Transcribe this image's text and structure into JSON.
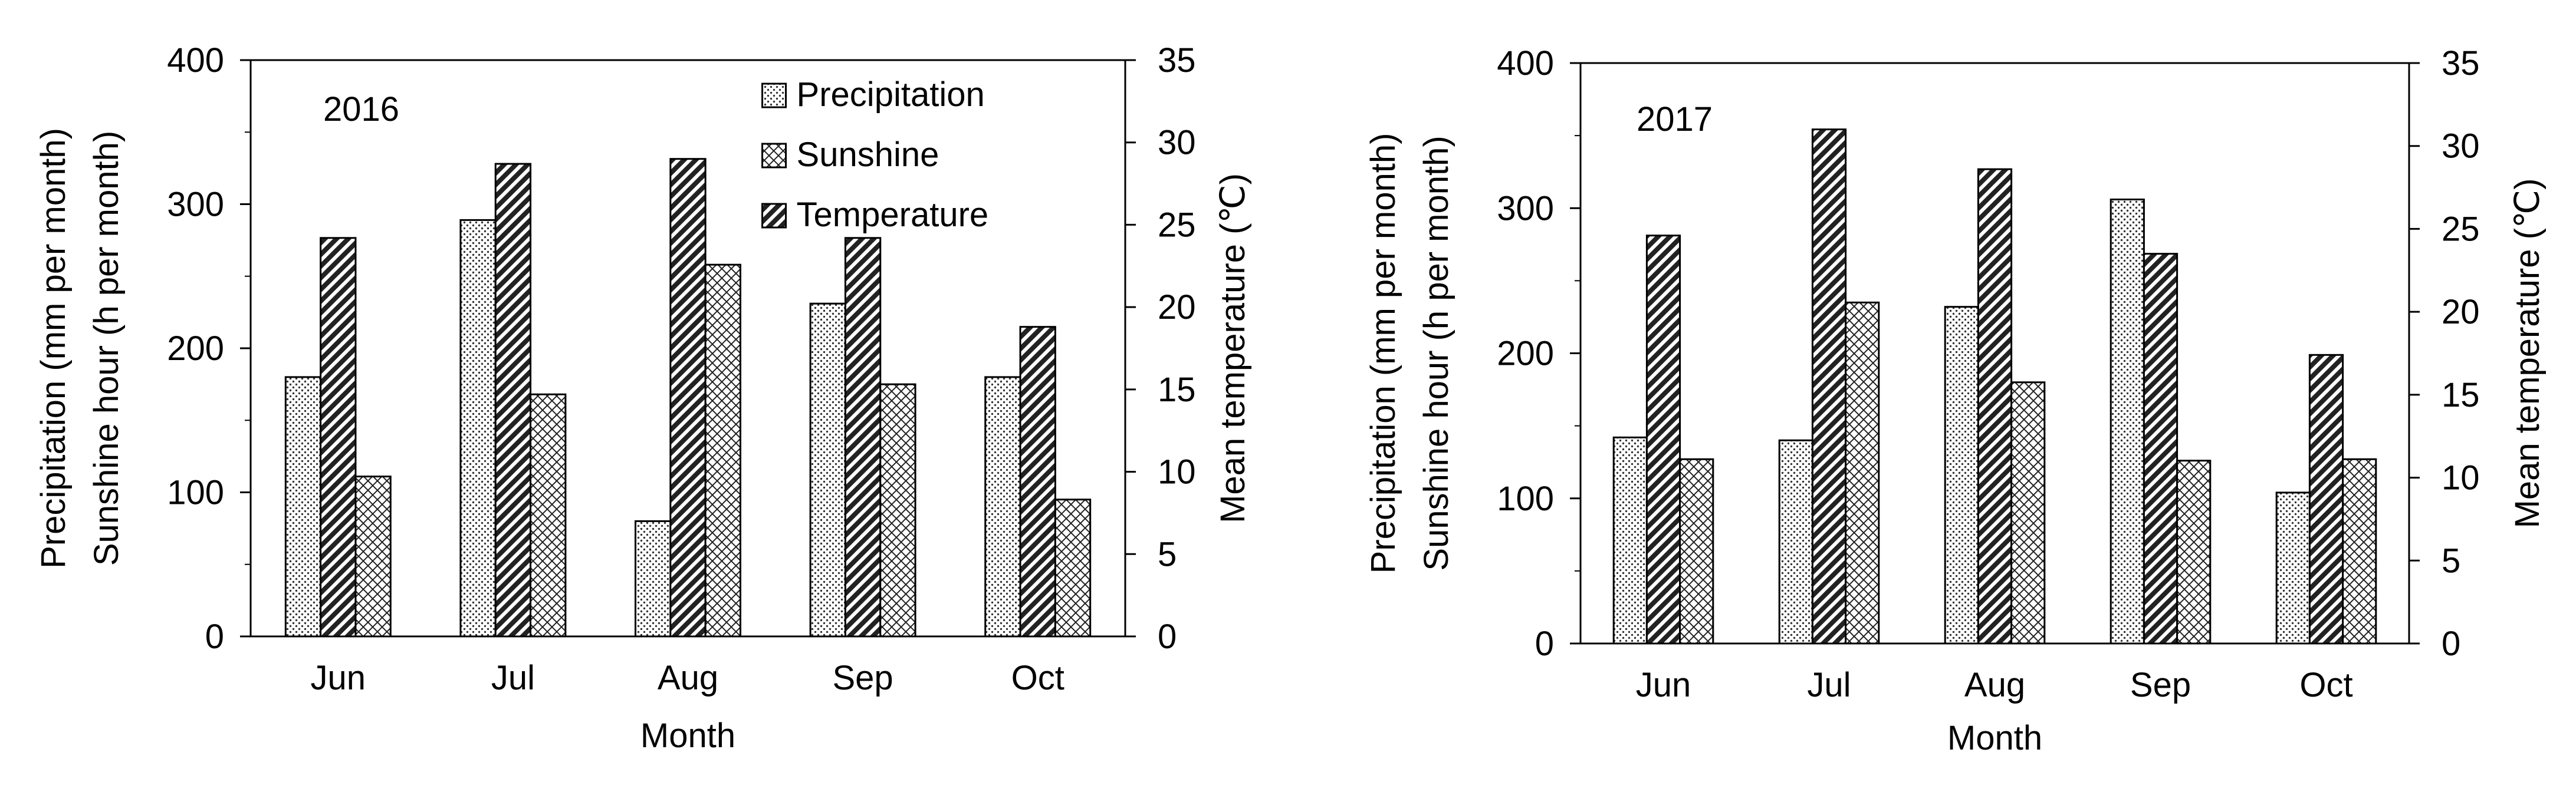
{
  "chart_data": [
    {
      "type": "bar",
      "title": "2016",
      "xlabel": "Month",
      "ylabel_left": [
        "Precipitation (mm per month)",
        "Sunshine hour (h per month)"
      ],
      "ylabel_right": "Mean temperature (℃)",
      "ylim_left": [
        0,
        400
      ],
      "ylim_right": [
        0,
        35
      ],
      "yticks_left": [
        "0",
        "100",
        "200",
        "300",
        "400"
      ],
      "yticks_right": [
        "0",
        "5",
        "10",
        "15",
        "20",
        "25",
        "30",
        "35"
      ],
      "categories": [
        "Jun",
        "Jul",
        "Aug",
        "Sep",
        "Oct"
      ],
      "legend_position": "top-right",
      "legend": [
        "Precipitation",
        "Sunshine",
        "Temperature"
      ],
      "series": [
        {
          "name": "Precipitation",
          "axis": "left",
          "pattern": "dots",
          "values": [
            180,
            289,
            80,
            231,
            180
          ]
        },
        {
          "name": "Temperature",
          "axis": "right",
          "pattern": "diagonal",
          "values": [
            24.2,
            28.7,
            29.0,
            24.2,
            18.8
          ]
        },
        {
          "name": "Sunshine",
          "axis": "left",
          "pattern": "cross",
          "values": [
            111,
            168,
            258,
            175,
            95
          ]
        }
      ]
    },
    {
      "type": "bar",
      "title": "2017",
      "xlabel": "Month",
      "ylabel_left": [
        "Precipitation (mm per month)",
        "Sunshine hour (h per month)"
      ],
      "ylabel_right": "Mean temperature (℃)",
      "ylim_left": [
        0,
        400
      ],
      "ylim_right": [
        0,
        35
      ],
      "yticks_left": [
        "0",
        "100",
        "200",
        "300",
        "400"
      ],
      "yticks_right": [
        "0",
        "5",
        "10",
        "15",
        "20",
        "25",
        "30",
        "35"
      ],
      "categories": [
        "Jun",
        "Jul",
        "Aug",
        "Sep",
        "Oct"
      ],
      "legend_position": "none",
      "legend": [],
      "series": [
        {
          "name": "Precipitation",
          "axis": "left",
          "pattern": "dots",
          "values": [
            142,
            140,
            232,
            306,
            104
          ]
        },
        {
          "name": "Temperature",
          "axis": "right",
          "pattern": "diagonal",
          "values": [
            24.6,
            31.0,
            28.6,
            23.5,
            17.4
          ]
        },
        {
          "name": "Sunshine",
          "axis": "left",
          "pattern": "cross",
          "values": [
            127,
            235,
            180,
            126,
            127
          ]
        }
      ]
    }
  ]
}
